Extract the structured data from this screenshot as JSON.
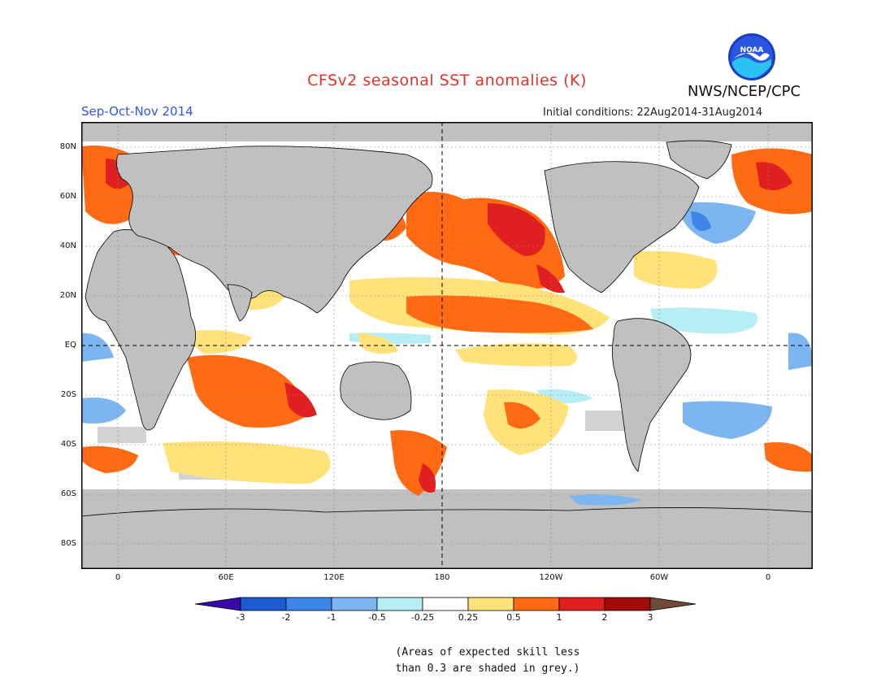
{
  "title": "CFSv2 seasonal SST anomalies (K)",
  "season": "Sep-Oct-Nov 2014",
  "initial_conditions": "Initial conditions: 22Aug2014-31Aug2014",
  "agency": "NWS/NCEP/CPC",
  "logo_text": "NOAA",
  "lat_labels": [
    "80N",
    "60N",
    "40N",
    "20N",
    "EQ",
    "20S",
    "40S",
    "60S",
    "80S"
  ],
  "lon_labels": [
    "0",
    "60E",
    "120E",
    "180",
    "120W",
    "60W",
    "0"
  ],
  "colorbar": {
    "labels": [
      "-3",
      "-2",
      "-1",
      "-0.5",
      "-0.25",
      "0.25",
      "0.5",
      "1",
      "2",
      "3"
    ],
    "colors": [
      "#3a0aa8",
      "#1e5bd1",
      "#3d86e8",
      "#7db5f0",
      "#b7eef5",
      "#ffffff",
      "#ffe27a",
      "#ff6a12",
      "#e02020",
      "#a40a0a",
      "#6e4a38"
    ]
  },
  "note_lines": [
    "(Areas of expected skill less",
    "than 0.3 are shaded in grey.)"
  ]
}
